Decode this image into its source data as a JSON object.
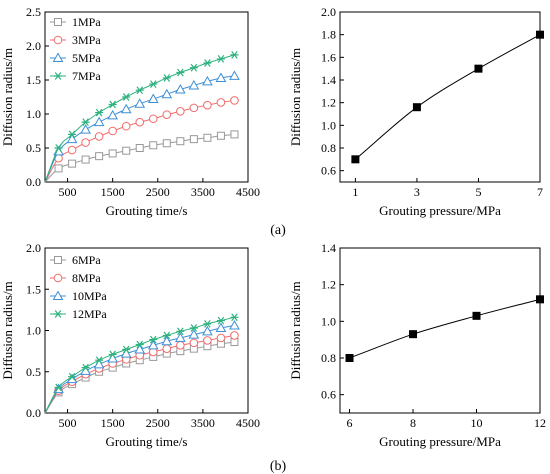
{
  "panel_labels": [
    "(a)",
    "(b)"
  ],
  "chart_data": [
    {
      "id": "a-left",
      "type": "line",
      "xlabel": "Grouting time/s",
      "ylabel": "Diffusion radius/m",
      "xlim": [
        0,
        4500
      ],
      "ylim": [
        0,
        2.5
      ],
      "xticks": [
        500,
        1500,
        2500,
        3500,
        4500
      ],
      "yticks": [
        0.0,
        0.5,
        1.0,
        1.5,
        2.0,
        2.5
      ],
      "ytick_labels": [
        "0.0",
        "0.5",
        "1.0",
        "1.5",
        "2.0",
        "2.5"
      ],
      "legend_position": "top-left",
      "series": [
        {
          "name": "1MPa",
          "color": "#999999",
          "marker": "square",
          "x": [
            300,
            600,
            900,
            1200,
            1500,
            1800,
            2100,
            2400,
            2700,
            3000,
            3300,
            3600,
            3900,
            4200
          ],
          "y": [
            0.2,
            0.27,
            0.33,
            0.38,
            0.42,
            0.46,
            0.5,
            0.54,
            0.57,
            0.6,
            0.63,
            0.65,
            0.68,
            0.7
          ]
        },
        {
          "name": "3MPa",
          "color": "#f26b6b",
          "marker": "circle",
          "x": [
            300,
            600,
            900,
            1200,
            1500,
            1800,
            2100,
            2400,
            2700,
            3000,
            3300,
            3600,
            3900,
            4200
          ],
          "y": [
            0.35,
            0.47,
            0.58,
            0.67,
            0.75,
            0.82,
            0.88,
            0.93,
            0.99,
            1.04,
            1.09,
            1.13,
            1.17,
            1.2
          ]
        },
        {
          "name": "5MPa",
          "color": "#3d8fd6",
          "marker": "triangle",
          "x": [
            300,
            600,
            900,
            1200,
            1500,
            1800,
            2100,
            2400,
            2700,
            3000,
            3300,
            3600,
            3900,
            4200
          ],
          "y": [
            0.45,
            0.63,
            0.77,
            0.88,
            0.98,
            1.07,
            1.15,
            1.22,
            1.29,
            1.36,
            1.42,
            1.48,
            1.53,
            1.56
          ]
        },
        {
          "name": "7MPa",
          "color": "#2fb27f",
          "marker": "star",
          "x": [
            300,
            600,
            900,
            1200,
            1500,
            1800,
            2100,
            2400,
            2700,
            3000,
            3300,
            3600,
            3900,
            4200
          ],
          "y": [
            0.5,
            0.7,
            0.88,
            1.02,
            1.14,
            1.25,
            1.35,
            1.44,
            1.53,
            1.61,
            1.68,
            1.75,
            1.81,
            1.87
          ]
        }
      ]
    },
    {
      "id": "a-right",
      "type": "line",
      "xlabel": "Grouting pressure/MPa",
      "ylabel": "Diffusion radius/m",
      "xlim": [
        0.5,
        7
      ],
      "ylim": [
        0.5,
        2.0
      ],
      "xticks": [
        1,
        3,
        5,
        7
      ],
      "yticks": [
        0.6,
        0.8,
        1.0,
        1.2,
        1.4,
        1.6,
        1.8,
        2.0
      ],
      "ytick_labels": [
        "0.6",
        "0.8",
        "1.0",
        "1.2",
        "1.4",
        "1.6",
        "1.8",
        "2.0"
      ],
      "series": [
        {
          "name": "",
          "color": "#000000",
          "marker": "filled-square",
          "x": [
            1,
            3,
            5,
            7
          ],
          "y": [
            0.7,
            1.16,
            1.5,
            1.8
          ]
        }
      ]
    },
    {
      "id": "b-left",
      "type": "line",
      "xlabel": "Grouting time/s",
      "ylabel": "Diffusion radius/m",
      "xlim": [
        0,
        4500
      ],
      "ylim": [
        0,
        2.0
      ],
      "xticks": [
        500,
        1500,
        2500,
        3500,
        4500
      ],
      "yticks": [
        0.0,
        0.5,
        1.0,
        1.5,
        2.0
      ],
      "ytick_labels": [
        "0.0",
        "0.5",
        "1.0",
        "1.5",
        "2.0"
      ],
      "legend_position": "top-left",
      "series": [
        {
          "name": "6MPa",
          "color": "#999999",
          "marker": "square",
          "x": [
            300,
            600,
            900,
            1200,
            1500,
            1800,
            2100,
            2400,
            2700,
            3000,
            3300,
            3600,
            3900,
            4200
          ],
          "y": [
            0.25,
            0.35,
            0.43,
            0.5,
            0.55,
            0.6,
            0.64,
            0.68,
            0.72,
            0.75,
            0.78,
            0.81,
            0.84,
            0.86
          ]
        },
        {
          "name": "8MPa",
          "color": "#f26b6b",
          "marker": "circle",
          "x": [
            300,
            600,
            900,
            1200,
            1500,
            1800,
            2100,
            2400,
            2700,
            3000,
            3300,
            3600,
            3900,
            4200
          ],
          "y": [
            0.27,
            0.38,
            0.47,
            0.54,
            0.6,
            0.65,
            0.7,
            0.74,
            0.78,
            0.82,
            0.85,
            0.88,
            0.91,
            0.94
          ]
        },
        {
          "name": "10MPa",
          "color": "#3d8fd6",
          "marker": "triangle",
          "x": [
            300,
            600,
            900,
            1200,
            1500,
            1800,
            2100,
            2400,
            2700,
            3000,
            3300,
            3600,
            3900,
            4200
          ],
          "y": [
            0.29,
            0.41,
            0.51,
            0.59,
            0.66,
            0.72,
            0.77,
            0.82,
            0.87,
            0.91,
            0.95,
            0.99,
            1.03,
            1.06
          ]
        },
        {
          "name": "12MPa",
          "color": "#2fb27f",
          "marker": "star",
          "x": [
            300,
            600,
            900,
            1200,
            1500,
            1800,
            2100,
            2400,
            2700,
            3000,
            3300,
            3600,
            3900,
            4200
          ],
          "y": [
            0.31,
            0.44,
            0.55,
            0.64,
            0.71,
            0.77,
            0.83,
            0.89,
            0.94,
            0.99,
            1.03,
            1.08,
            1.12,
            1.16
          ]
        }
      ]
    },
    {
      "id": "b-right",
      "type": "line",
      "xlabel": "Grouting pressure/MPa",
      "ylabel": "Diffusion radius/m",
      "xlim": [
        5.7,
        12
      ],
      "ylim": [
        0.5,
        1.4
      ],
      "xticks": [
        6,
        8,
        10,
        12
      ],
      "yticks": [
        0.6,
        0.8,
        1.0,
        1.2,
        1.4
      ],
      "ytick_labels": [
        "0.6",
        "0.8",
        "1.0",
        "1.2",
        "1.4"
      ],
      "series": [
        {
          "name": "",
          "color": "#000000",
          "marker": "filled-square",
          "x": [
            6,
            8,
            10,
            12
          ],
          "y": [
            0.8,
            0.93,
            1.03,
            1.12
          ]
        }
      ]
    }
  ]
}
